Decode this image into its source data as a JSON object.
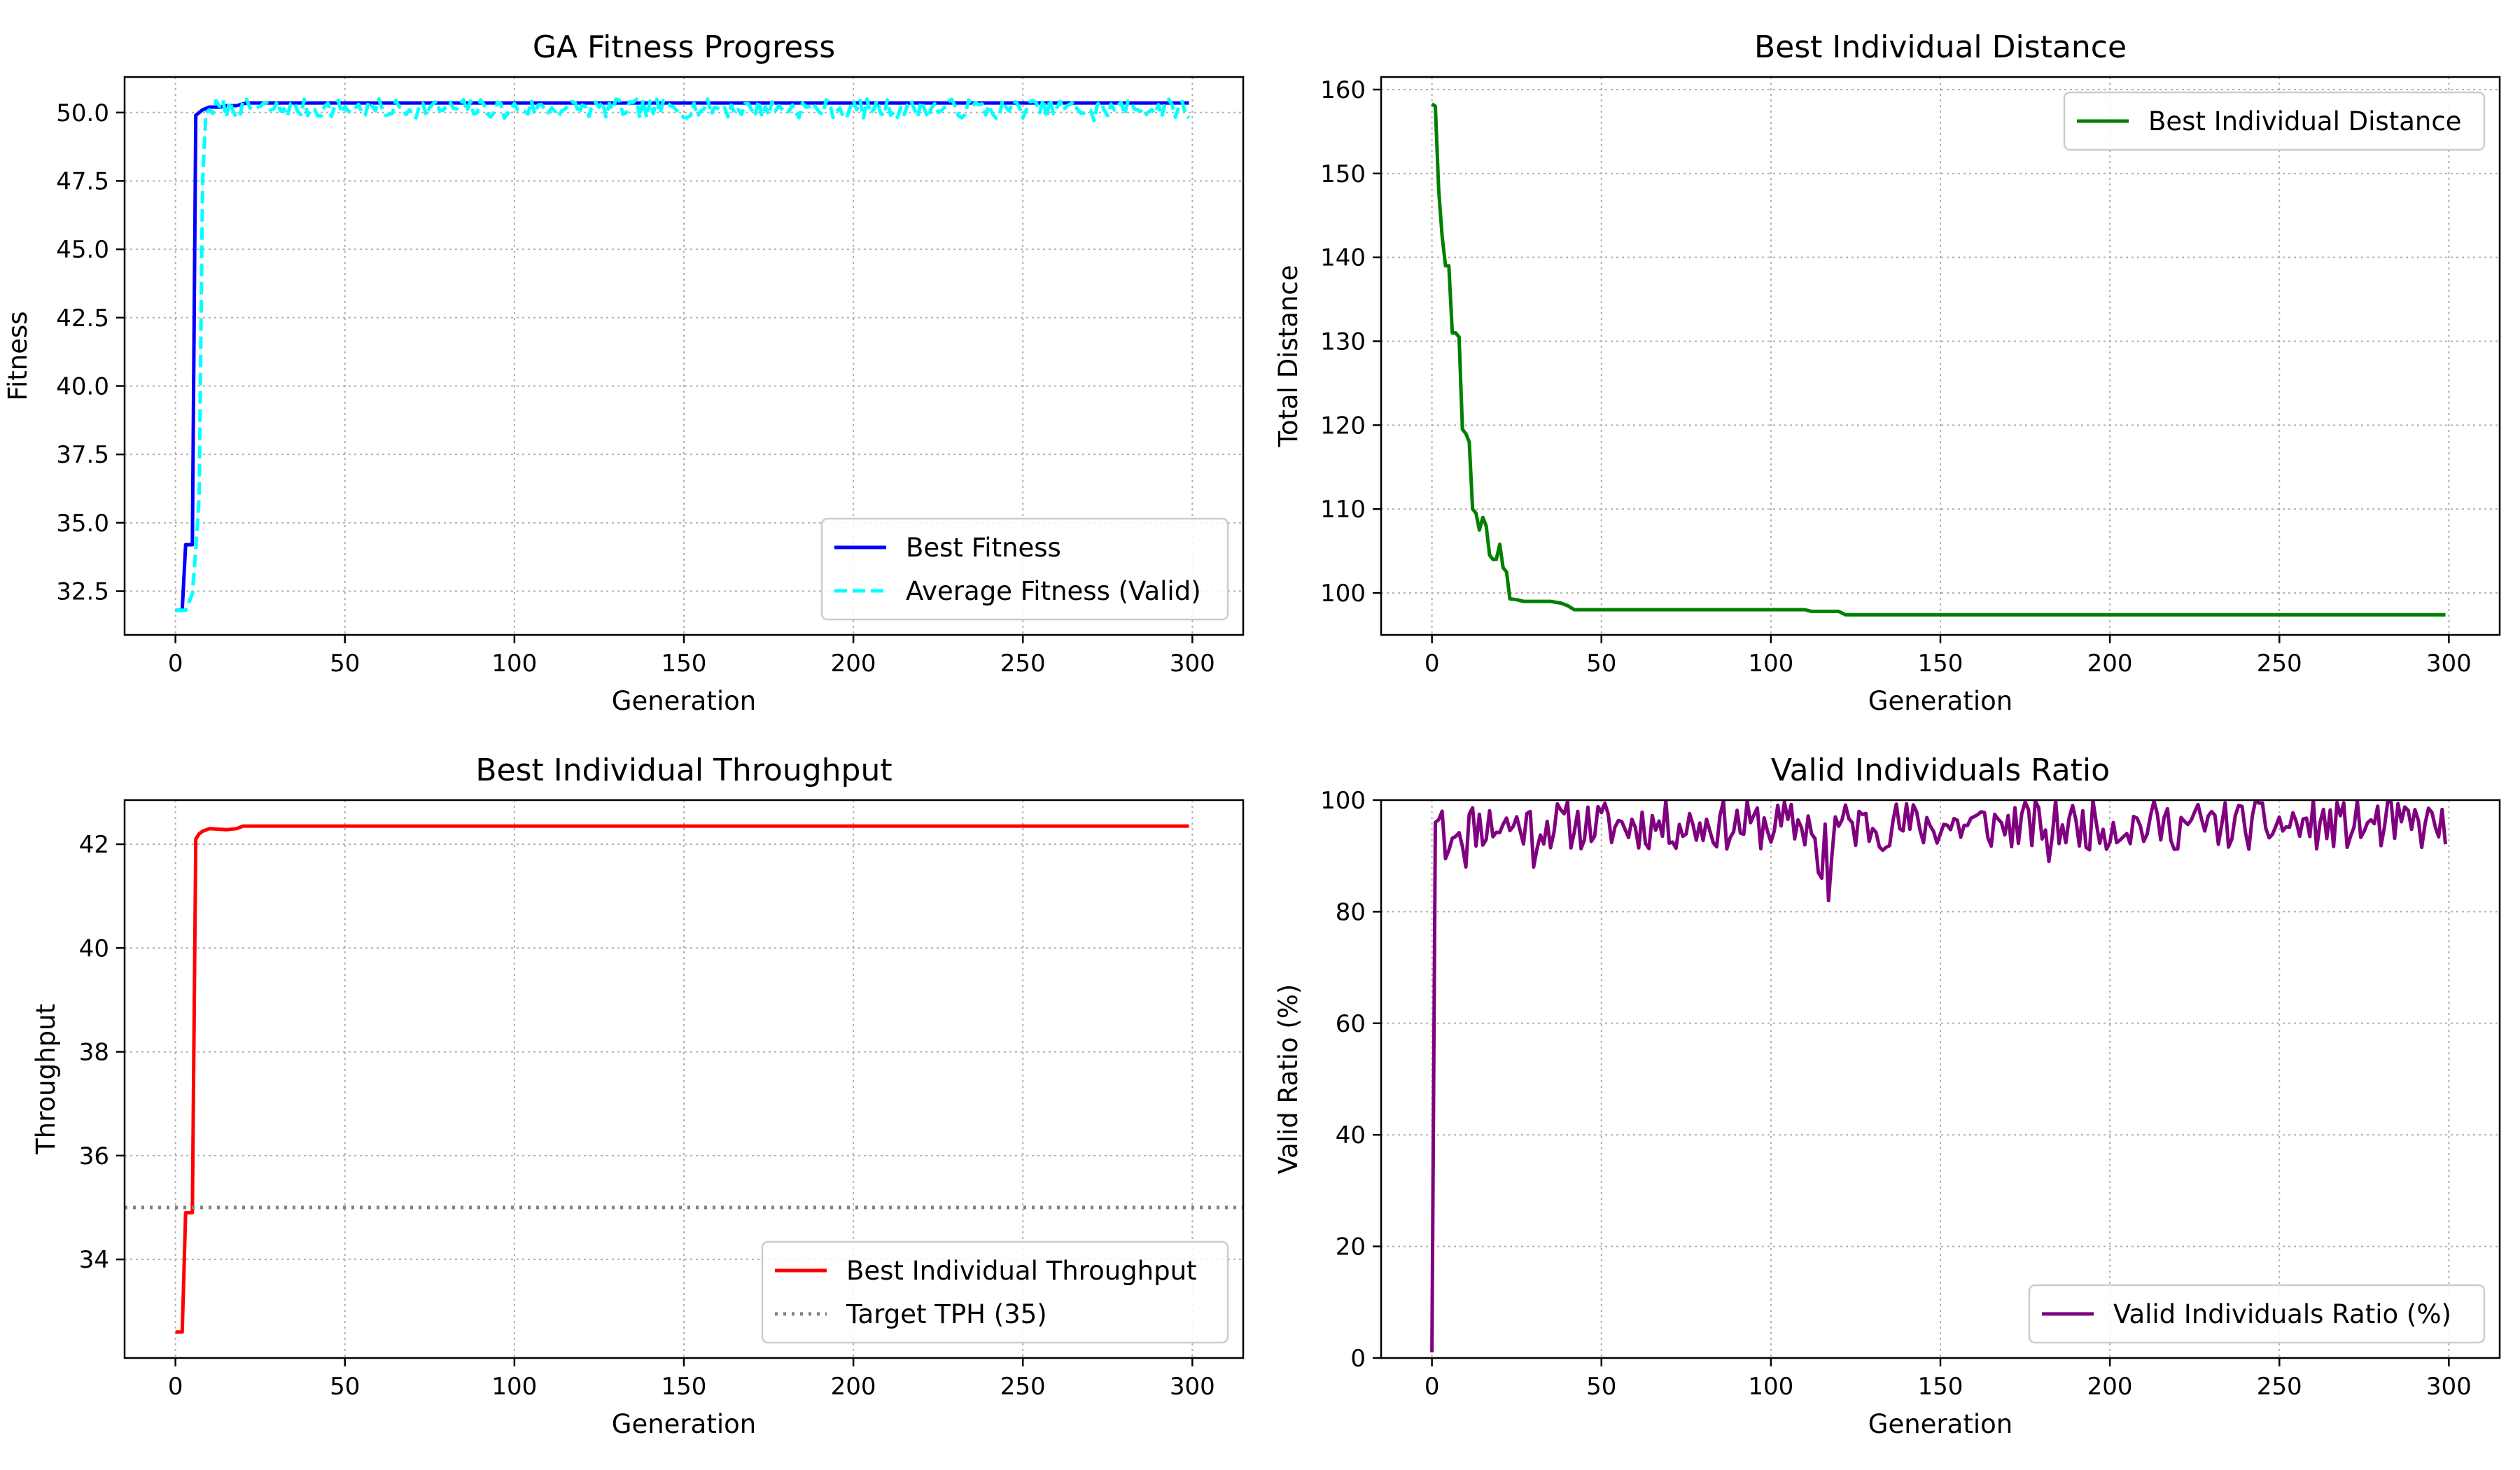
{
  "figure": {
    "panels": [
      "fitness",
      "distance",
      "throughput",
      "valid"
    ]
  },
  "chart_data": [
    {
      "id": "fitness",
      "type": "line",
      "title": "GA Fitness Progress",
      "xlabel": "Generation",
      "ylabel": "Fitness",
      "xlim": [
        -15,
        315
      ],
      "ylim": [
        30.9,
        51.3
      ],
      "xticks": [
        0,
        50,
        100,
        150,
        200,
        250,
        300
      ],
      "yticks": [
        32.5,
        35.0,
        37.5,
        40.0,
        42.5,
        45.0,
        47.5,
        50.0
      ],
      "ytick_labels": [
        "32.5",
        "35.0",
        "37.5",
        "40.0",
        "42.5",
        "45.0",
        "47.5",
        "50.0"
      ],
      "grid": true,
      "legend": "lower right",
      "series": [
        {
          "name": "Best Fitness",
          "color": "#0000ff",
          "style": "solid",
          "points": [
            [
              0,
              31.8
            ],
            [
              2,
              31.8
            ],
            [
              3,
              34.2
            ],
            [
              5,
              34.2
            ],
            [
              6,
              49.9
            ],
            [
              7,
              50.0
            ],
            [
              8,
              50.1
            ],
            [
              10,
              50.2
            ],
            [
              13,
              50.2
            ],
            [
              15,
              50.25
            ],
            [
              18,
              50.25
            ],
            [
              21,
              50.35
            ],
            [
              299,
              50.35
            ]
          ]
        },
        {
          "name": "Average Fitness (Valid)",
          "color": "#00ffff",
          "style": "dashed",
          "generated": {
            "start": 0,
            "end": 299,
            "base": 50.15,
            "amp": 0.35,
            "seed": 7,
            "dips": [
              [
                62,
                49.9
              ],
              [
                97,
                49.8
              ],
              [
                137,
                49.8
              ],
              [
                198,
                49.8
              ],
              [
                242,
                49.8
              ],
              [
                271,
                49.7
              ],
              [
                299,
                49.8
              ]
            ]
          },
          "early": [
            [
              0,
              31.8
            ],
            [
              3,
              31.8
            ],
            [
              5,
              32.4
            ],
            [
              6,
              34.0
            ],
            [
              7,
              36.0
            ],
            [
              8,
              47.5
            ],
            [
              9,
              50.0
            ],
            [
              10,
              50.1
            ]
          ]
        }
      ]
    },
    {
      "id": "distance",
      "type": "line",
      "title": "Best Individual Distance",
      "xlabel": "Generation",
      "ylabel": "Total Distance",
      "xlim": [
        -15,
        315
      ],
      "ylim": [
        95,
        161.5
      ],
      "xticks": [
        0,
        50,
        100,
        150,
        200,
        250,
        300
      ],
      "yticks": [
        100,
        110,
        120,
        130,
        140,
        150,
        160
      ],
      "ytick_labels": [
        "100",
        "110",
        "120",
        "130",
        "140",
        "150",
        "160"
      ],
      "grid": true,
      "legend": "upper right",
      "series": [
        {
          "name": "Best Individual Distance",
          "color": "#008000",
          "style": "solid",
          "points": [
            [
              0,
              158.3
            ],
            [
              1,
              158.0
            ],
            [
              2,
              148.0
            ],
            [
              3,
              142.5
            ],
            [
              4,
              139.0
            ],
            [
              5,
              139.0
            ],
            [
              6,
              131.0
            ],
            [
              7,
              131.0
            ],
            [
              8,
              130.5
            ],
            [
              9,
              119.5
            ],
            [
              10,
              119.0
            ],
            [
              11,
              118.0
            ],
            [
              12,
              110.0
            ],
            [
              13,
              109.5
            ],
            [
              14,
              107.5
            ],
            [
              15,
              109.0
            ],
            [
              16,
              108.0
            ],
            [
              17,
              104.5
            ],
            [
              18,
              104.0
            ],
            [
              19,
              104.0
            ],
            [
              20,
              105.8
            ],
            [
              21,
              103.0
            ],
            [
              22,
              102.5
            ],
            [
              23,
              99.3
            ],
            [
              25,
              99.2
            ],
            [
              27,
              99.0
            ],
            [
              35,
              99.0
            ],
            [
              38,
              98.8
            ],
            [
              40,
              98.5
            ],
            [
              42,
              98.0
            ],
            [
              70,
              98.0
            ],
            [
              110,
              98.0
            ],
            [
              112,
              97.8
            ],
            [
              120,
              97.8
            ],
            [
              122,
              97.4
            ],
            [
              299,
              97.4
            ]
          ]
        }
      ]
    },
    {
      "id": "throughput",
      "type": "line",
      "title": "Best Individual Throughput",
      "xlabel": "Generation",
      "ylabel": "Throughput",
      "xlim": [
        -15,
        315
      ],
      "ylim": [
        32.1,
        42.85
      ],
      "xticks": [
        0,
        50,
        100,
        150,
        200,
        250,
        300
      ],
      "yticks": [
        34,
        36,
        38,
        40,
        42
      ],
      "ytick_labels": [
        "34",
        "36",
        "38",
        "40",
        "42"
      ],
      "grid": true,
      "legend": "lower right",
      "series": [
        {
          "name": "Best Individual Throughput",
          "color": "#ff0000",
          "style": "solid",
          "points": [
            [
              0,
              32.6
            ],
            [
              2,
              32.6
            ],
            [
              3,
              34.9
            ],
            [
              5,
              34.9
            ],
            [
              6,
              42.1
            ],
            [
              7,
              42.2
            ],
            [
              8,
              42.25
            ],
            [
              10,
              42.3
            ],
            [
              15,
              42.28
            ],
            [
              18,
              42.3
            ],
            [
              20,
              42.35
            ],
            [
              299,
              42.35
            ]
          ]
        },
        {
          "name": "Target TPH (35)",
          "color": "#808080",
          "style": "dotted",
          "hline": 35
        }
      ]
    },
    {
      "id": "valid",
      "type": "line",
      "title": "Valid Individuals Ratio",
      "xlabel": "Generation",
      "ylabel": "Valid Ratio (%)",
      "xlim": [
        -15,
        315
      ],
      "ylim": [
        0,
        100
      ],
      "xticks": [
        0,
        50,
        100,
        150,
        200,
        250,
        300
      ],
      "yticks": [
        0,
        20,
        40,
        60,
        80,
        100
      ],
      "ytick_labels": [
        "0",
        "20",
        "40",
        "60",
        "80",
        "100"
      ],
      "grid": true,
      "legend": "lower right",
      "series": [
        {
          "name": "Valid Individuals Ratio (%)",
          "color": "#800080",
          "style": "solid",
          "generated": {
            "start": 0,
            "end": 299,
            "base": 95.5,
            "amp": 4.5,
            "seed": 11,
            "dips": [
              [
                114,
                87
              ],
              [
                115,
                86
              ],
              [
                117,
                82
              ],
              [
                118,
                90
              ],
              [
                10,
                88
              ],
              [
                30,
                88
              ],
              [
                182,
                89
              ]
            ]
          },
          "early": [
            [
              0,
              1
            ],
            [
              1,
              96
            ],
            [
              2,
              96.5
            ],
            [
              3,
              98
            ],
            [
              4,
              89.5
            ],
            [
              5,
              91
            ]
          ]
        }
      ]
    }
  ]
}
